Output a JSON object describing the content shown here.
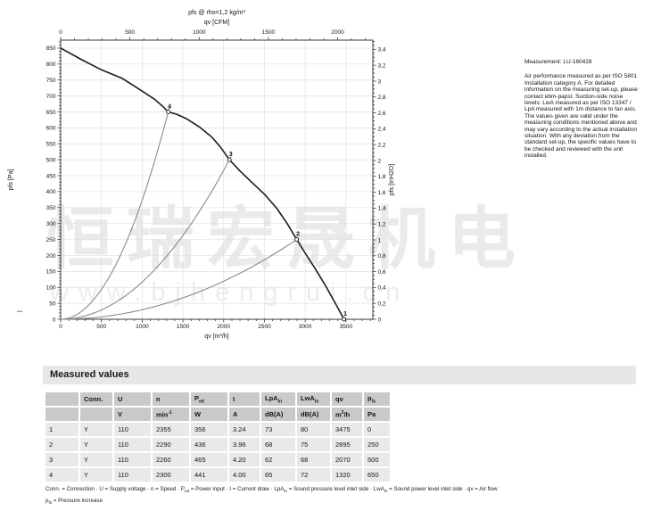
{
  "watermark": {
    "text_cn": "恒瑞宏晟机电",
    "text_url": "www.bjhengrui.cn"
  },
  "misc": {
    "margin_dash": "–"
  },
  "side_note": {
    "measurement": "Measurement: LU-160428",
    "lines": [
      "Air performance measured as per ISO 5801",
      "Installation category A. For detailed",
      "information on the measuring set-up, please",
      "contact ebm-papst. Suction-side noise",
      "levels: LwA measured as per ISO 13347 /",
      "LpA measured with 1m distance to fan axis.",
      "The values given are valid under the",
      "measuring conditions mentioned above and",
      "may vary according to the actual installation",
      "situation. With any deviation from the",
      "standard set-up, the specific values have to",
      "be checked and reviewed with the unit",
      "installed."
    ]
  },
  "chart_data": {
    "type": "line",
    "title": "pfs @ rho=1,2 kg/m³",
    "top_axis": {
      "label": "qv [CFM]",
      "m3h_per_cfm": 1.699,
      "tick_step": 500,
      "minor_step": 100,
      "tick_max": 2000
    },
    "bottom_axis": {
      "label": "qv [m³/h]",
      "min": 0,
      "max": 3830,
      "tick_step": 500,
      "minor_step": 100,
      "tick_max": 3500
    },
    "left_axis": {
      "label": "pfs [Pa]",
      "min": 0,
      "max": 875,
      "tick_step": 50,
      "minor_step": 10,
      "tick_max": 850
    },
    "right_axis": {
      "label": "pfs [InH2O]",
      "pa_per_unit": 248.84,
      "tick_step": 0.2,
      "minor_step": 0.05,
      "tick_max": 3.4
    },
    "grid": {
      "x_step": 500,
      "y_step": 50
    },
    "fan_curve": [
      [
        0,
        850
      ],
      [
        250,
        815
      ],
      [
        500,
        782
      ],
      [
        750,
        756
      ],
      [
        1000,
        715
      ],
      [
        1150,
        690
      ],
      [
        1250,
        668
      ],
      [
        1320,
        650
      ],
      [
        1420,
        643
      ],
      [
        1550,
        628
      ],
      [
        1700,
        603
      ],
      [
        1850,
        572
      ],
      [
        1960,
        540
      ],
      [
        2070,
        500
      ],
      [
        2200,
        465
      ],
      [
        2350,
        428
      ],
      [
        2500,
        392
      ],
      [
        2650,
        348
      ],
      [
        2780,
        300
      ],
      [
        2895,
        250
      ],
      [
        3000,
        207
      ],
      [
        3120,
        160
      ],
      [
        3250,
        105
      ],
      [
        3380,
        45
      ],
      [
        3475,
        0
      ]
    ],
    "system_curves": [
      {
        "Q": 1320,
        "P": 650
      },
      {
        "Q": 2070,
        "P": 500
      },
      {
        "Q": 2895,
        "P": 250
      }
    ],
    "operating_points": [
      {
        "label": "4",
        "qv": 1320,
        "pfs": 650
      },
      {
        "label": "3",
        "qv": 2070,
        "pfs": 500
      },
      {
        "label": "2",
        "qv": 2895,
        "pfs": 250
      },
      {
        "label": "1",
        "qv": 3475,
        "pfs": 0
      }
    ],
    "colors": {
      "frame": "#3a3a3a",
      "grid": "#e0e0e0",
      "fan": "#1c1c1c",
      "system": "#8a8a8a",
      "text": "#111111",
      "marker_fill": "#ffffff"
    }
  },
  "table": {
    "title": "Measured values",
    "headers": [
      [
        {
          "t": ""
        }
      ],
      [
        {
          "t": "Conn."
        }
      ],
      [
        {
          "t": "U"
        }
      ],
      [
        {
          "t": "n"
        }
      ],
      [
        {
          "t": "P"
        },
        {
          "sub": "ed"
        }
      ],
      [
        {
          "t": "I"
        }
      ],
      [
        {
          "t": "LpA"
        },
        {
          "sub": "in"
        }
      ],
      [
        {
          "t": "LwA"
        },
        {
          "sub": "in"
        }
      ],
      [
        {
          "t": "qv"
        }
      ],
      [
        {
          "t": "p"
        },
        {
          "sub": "fs"
        }
      ]
    ],
    "units": [
      [
        {
          "t": ""
        }
      ],
      [
        {
          "t": ""
        }
      ],
      [
        {
          "t": "V"
        }
      ],
      [
        {
          "t": "min"
        },
        {
          "sup": "-1"
        }
      ],
      [
        {
          "t": "W"
        }
      ],
      [
        {
          "t": "A"
        }
      ],
      [
        {
          "t": "dB(A)"
        }
      ],
      [
        {
          "t": "dB(A)"
        }
      ],
      [
        {
          "t": "m"
        },
        {
          "sup": "3"
        },
        {
          "t": "/h"
        }
      ],
      [
        {
          "t": "Pa"
        }
      ]
    ],
    "rows": [
      [
        "1",
        "Y",
        "110",
        "2355",
        "356",
        "3.24",
        "73",
        "80",
        "3475",
        "0"
      ],
      [
        "2",
        "Y",
        "110",
        "2290",
        "436",
        "3.96",
        "68",
        "75",
        "2895",
        "250"
      ],
      [
        "3",
        "Y",
        "110",
        "2260",
        "465",
        "4.20",
        "62",
        "68",
        "2070",
        "500"
      ],
      [
        "4",
        "Y",
        "110",
        "2300",
        "441",
        "4.00",
        "65",
        "72",
        "1320",
        "650"
      ]
    ],
    "footnotes": [
      [
        {
          "t": "Conn. = Connection · U = Supply voltage · n = Speed · P"
        },
        {
          "sub": "ed"
        },
        {
          "t": " = Power input · I = Current draw · LpA"
        },
        {
          "sub": "in"
        },
        {
          "t": " = Sound pressure level inlet side · LwA"
        },
        {
          "sub": "in"
        },
        {
          "t": " = Sound power level inlet side · qv = Air flow"
        }
      ],
      [
        {
          "t": "p"
        },
        {
          "sub": "fs"
        },
        {
          "t": " = Pressure increase"
        }
      ]
    ]
  }
}
